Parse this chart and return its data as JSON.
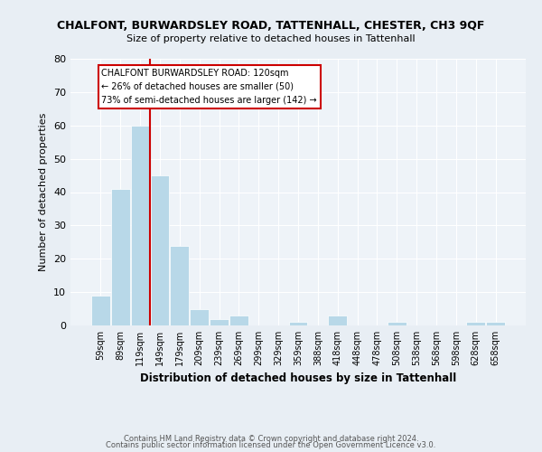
{
  "title": "CHALFONT, BURWARDSLEY ROAD, TATTENHALL, CHESTER, CH3 9QF",
  "subtitle": "Size of property relative to detached houses in Tattenhall",
  "xlabel": "Distribution of detached houses by size in Tattenhall",
  "ylabel": "Number of detached properties",
  "bar_labels": [
    "59sqm",
    "89sqm",
    "119sqm",
    "149sqm",
    "179sqm",
    "209sqm",
    "239sqm",
    "269sqm",
    "299sqm",
    "329sqm",
    "359sqm",
    "388sqm",
    "418sqm",
    "448sqm",
    "478sqm",
    "508sqm",
    "538sqm",
    "568sqm",
    "598sqm",
    "628sqm",
    "658sqm"
  ],
  "bar_values": [
    9,
    41,
    60,
    45,
    24,
    5,
    2,
    3,
    0,
    0,
    1,
    0,
    3,
    0,
    0,
    1,
    0,
    0,
    0,
    1,
    1
  ],
  "bar_color": "#b8d8e8",
  "vline_color": "#cc0000",
  "annotation_title": "CHALFONT BURWARDSLEY ROAD: 120sqm",
  "annotation_line1": "← 26% of detached houses are smaller (50)",
  "annotation_line2": "73% of semi-detached houses are larger (142) →",
  "annotation_box_facecolor": "#ffffff",
  "annotation_border_color": "#cc0000",
  "ylim": [
    0,
    80
  ],
  "yticks": [
    0,
    10,
    20,
    30,
    40,
    50,
    60,
    70,
    80
  ],
  "bg_color": "#e8eef4",
  "plot_bg_color": "#eef3f8",
  "footer1": "Contains HM Land Registry data © Crown copyright and database right 2024.",
  "footer2": "Contains public sector information licensed under the Open Government Licence v3.0."
}
